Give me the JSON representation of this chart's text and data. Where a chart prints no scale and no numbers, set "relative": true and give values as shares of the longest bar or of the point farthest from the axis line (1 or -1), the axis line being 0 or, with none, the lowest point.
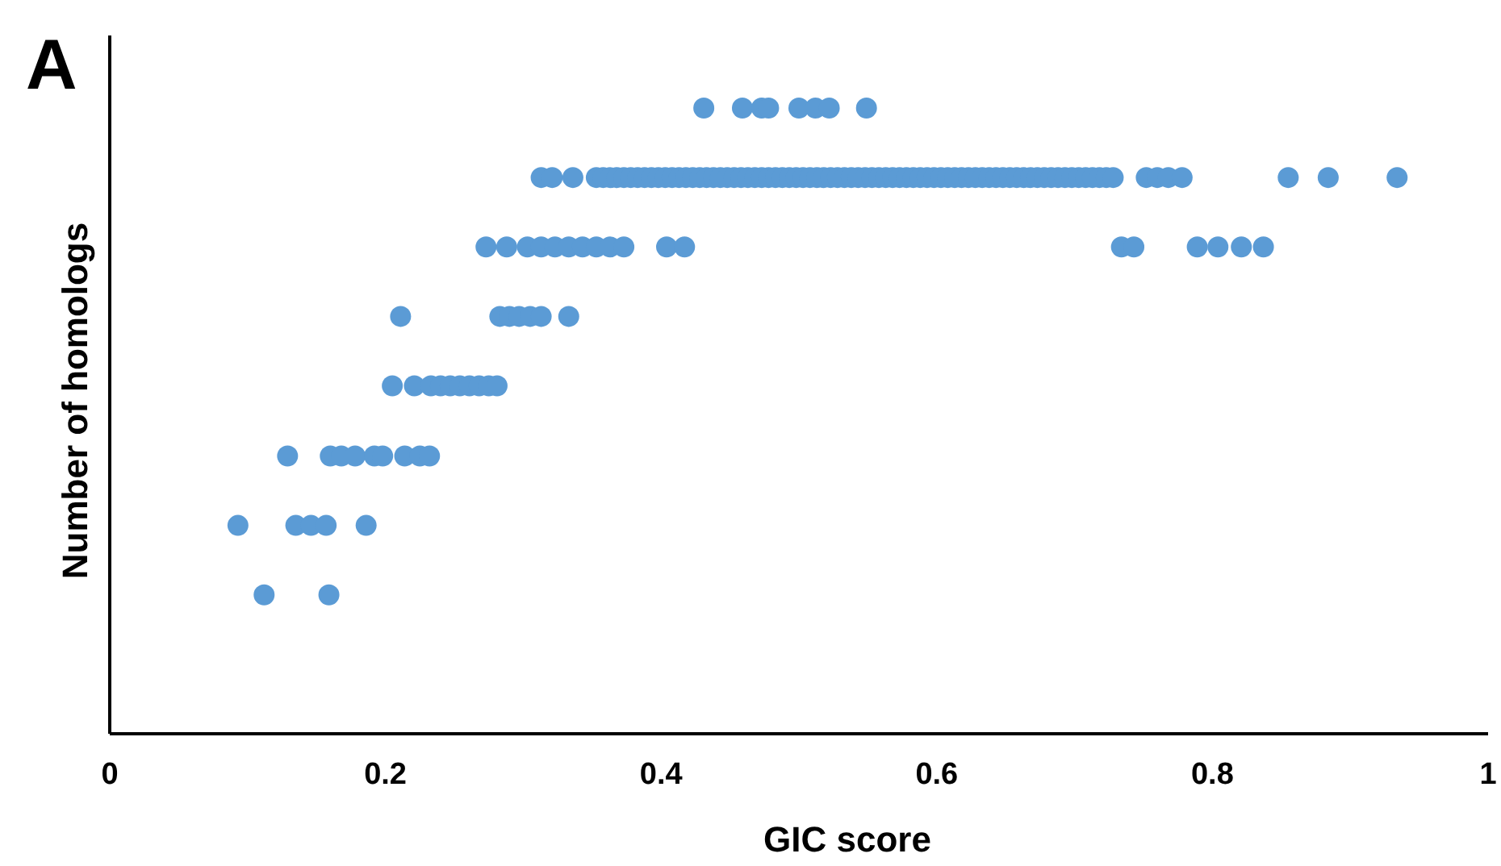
{
  "chart_data": {
    "type": "scatter",
    "title": "A",
    "xlabel": "GIC score",
    "ylabel": "Number of homologs",
    "relative": true,
    "xlim": [
      0,
      1
    ],
    "xticks": [
      0,
      0.2,
      0.4,
      0.6,
      0.8,
      1
    ],
    "marker": "circle",
    "grid": false,
    "series": [
      {
        "color": "#5b9bd5",
        "x": [
          0.431,
          0.459,
          0.473,
          0.478,
          0.5,
          0.512,
          0.522,
          0.549,
          0.313,
          0.321,
          0.336,
          0.353,
          0.358,
          0.363,
          0.368,
          0.373,
          0.378,
          0.383,
          0.388,
          0.393,
          0.398,
          0.403,
          0.408,
          0.413,
          0.418,
          0.423,
          0.428,
          0.433,
          0.438,
          0.443,
          0.448,
          0.453,
          0.458,
          0.463,
          0.468,
          0.473,
          0.478,
          0.483,
          0.488,
          0.493,
          0.498,
          0.503,
          0.508,
          0.513,
          0.518,
          0.523,
          0.528,
          0.533,
          0.538,
          0.543,
          0.548,
          0.553,
          0.558,
          0.563,
          0.568,
          0.573,
          0.578,
          0.583,
          0.588,
          0.593,
          0.598,
          0.603,
          0.608,
          0.613,
          0.618,
          0.623,
          0.628,
          0.633,
          0.638,
          0.643,
          0.648,
          0.653,
          0.658,
          0.663,
          0.668,
          0.673,
          0.678,
          0.683,
          0.688,
          0.693,
          0.698,
          0.703,
          0.708,
          0.713,
          0.718,
          0.723,
          0.728,
          0.752,
          0.76,
          0.768,
          0.778,
          0.855,
          0.884,
          0.934,
          0.273,
          0.288,
          0.303,
          0.313,
          0.323,
          0.333,
          0.343,
          0.353,
          0.363,
          0.373,
          0.404,
          0.417,
          0.734,
          0.743,
          0.789,
          0.804,
          0.821,
          0.837,
          0.211,
          0.283,
          0.29,
          0.297,
          0.305,
          0.313,
          0.333,
          0.205,
          0.221,
          0.233,
          0.24,
          0.247,
          0.254,
          0.261,
          0.268,
          0.275,
          0.281,
          0.129,
          0.16,
          0.168,
          0.178,
          0.192,
          0.198,
          0.214,
          0.225,
          0.232,
          0.093,
          0.135,
          0.146,
          0.157,
          0.186,
          0.112,
          0.159
        ],
        "values": [
          1,
          1,
          1,
          1,
          1,
          1,
          1,
          1,
          0.889,
          0.889,
          0.889,
          0.889,
          0.889,
          0.889,
          0.889,
          0.889,
          0.889,
          0.889,
          0.889,
          0.889,
          0.889,
          0.889,
          0.889,
          0.889,
          0.889,
          0.889,
          0.889,
          0.889,
          0.889,
          0.889,
          0.889,
          0.889,
          0.889,
          0.889,
          0.889,
          0.889,
          0.889,
          0.889,
          0.889,
          0.889,
          0.889,
          0.889,
          0.889,
          0.889,
          0.889,
          0.889,
          0.889,
          0.889,
          0.889,
          0.889,
          0.889,
          0.889,
          0.889,
          0.889,
          0.889,
          0.889,
          0.889,
          0.889,
          0.889,
          0.889,
          0.889,
          0.889,
          0.889,
          0.889,
          0.889,
          0.889,
          0.889,
          0.889,
          0.889,
          0.889,
          0.889,
          0.889,
          0.889,
          0.889,
          0.889,
          0.889,
          0.889,
          0.889,
          0.889,
          0.889,
          0.889,
          0.889,
          0.889,
          0.889,
          0.889,
          0.889,
          0.889,
          0.889,
          0.889,
          0.889,
          0.889,
          0.889,
          0.889,
          0.889,
          0.778,
          0.778,
          0.778,
          0.778,
          0.778,
          0.778,
          0.778,
          0.778,
          0.778,
          0.778,
          0.778,
          0.778,
          0.778,
          0.778,
          0.778,
          0.778,
          0.778,
          0.778,
          0.667,
          0.667,
          0.667,
          0.667,
          0.667,
          0.667,
          0.667,
          0.556,
          0.556,
          0.556,
          0.556,
          0.556,
          0.556,
          0.556,
          0.556,
          0.556,
          0.556,
          0.444,
          0.444,
          0.444,
          0.444,
          0.444,
          0.444,
          0.444,
          0.444,
          0.444,
          0.333,
          0.333,
          0.333,
          0.333,
          0.333,
          0.222,
          0.222
        ]
      }
    ]
  }
}
